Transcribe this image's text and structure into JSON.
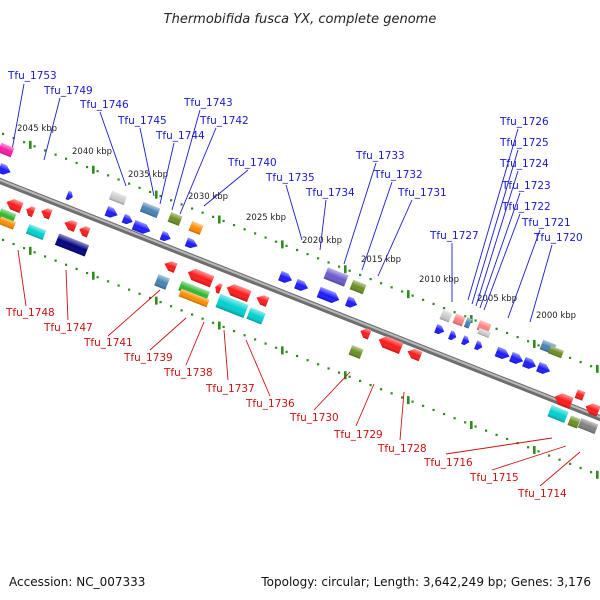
{
  "title": "Thermobifida fusca YX, complete genome",
  "footer": {
    "accession": "Accession: NC_007333",
    "summary": "Topology: circular; Length: 3,642,249 bp; Genes: 3,176"
  },
  "colors": {
    "forward_label": "#1a1acc",
    "reverse_label": "#cc1111",
    "backbone": "#8c8c8c",
    "tick": "#2e8b1e"
  },
  "ruler": [
    {
      "label": "2045 kbp"
    },
    {
      "label": "2040 kbp"
    },
    {
      "label": "2035 kbp"
    },
    {
      "label": "2030 kbp"
    },
    {
      "label": "2025 kbp"
    },
    {
      "label": "2020 kbp"
    },
    {
      "label": "2015 kbp"
    },
    {
      "label": "2010 kbp"
    },
    {
      "label": "2005 kbp"
    },
    {
      "label": "2000 kbp"
    }
  ],
  "genes_forward": [
    {
      "label": "Tfu_1753"
    },
    {
      "label": "Tfu_1749"
    },
    {
      "label": "Tfu_1746"
    },
    {
      "label": "Tfu_1745"
    },
    {
      "label": "Tfu_1744"
    },
    {
      "label": "Tfu_1743"
    },
    {
      "label": "Tfu_1742"
    },
    {
      "label": "Tfu_1740"
    },
    {
      "label": "Tfu_1735"
    },
    {
      "label": "Tfu_1734"
    },
    {
      "label": "Tfu_1733"
    },
    {
      "label": "Tfu_1732"
    },
    {
      "label": "Tfu_1731"
    },
    {
      "label": "Tfu_1727"
    },
    {
      "label": "Tfu_1726"
    },
    {
      "label": "Tfu_1725"
    },
    {
      "label": "Tfu_1724"
    },
    {
      "label": "Tfu_1723"
    },
    {
      "label": "Tfu_1722"
    },
    {
      "label": "Tfu_1721"
    },
    {
      "label": "Tfu_1720"
    }
  ],
  "genes_reverse": [
    {
      "label": "Tfu_1748"
    },
    {
      "label": "Tfu_1747"
    },
    {
      "label": "Tfu_1741"
    },
    {
      "label": "Tfu_1739"
    },
    {
      "label": "Tfu_1738"
    },
    {
      "label": "Tfu_1737"
    },
    {
      "label": "Tfu_1736"
    },
    {
      "label": "Tfu_1730"
    },
    {
      "label": "Tfu_1729"
    },
    {
      "label": "Tfu_1728"
    },
    {
      "label": "Tfu_1716"
    },
    {
      "label": "Tfu_1715"
    },
    {
      "label": "Tfu_1714"
    }
  ]
}
